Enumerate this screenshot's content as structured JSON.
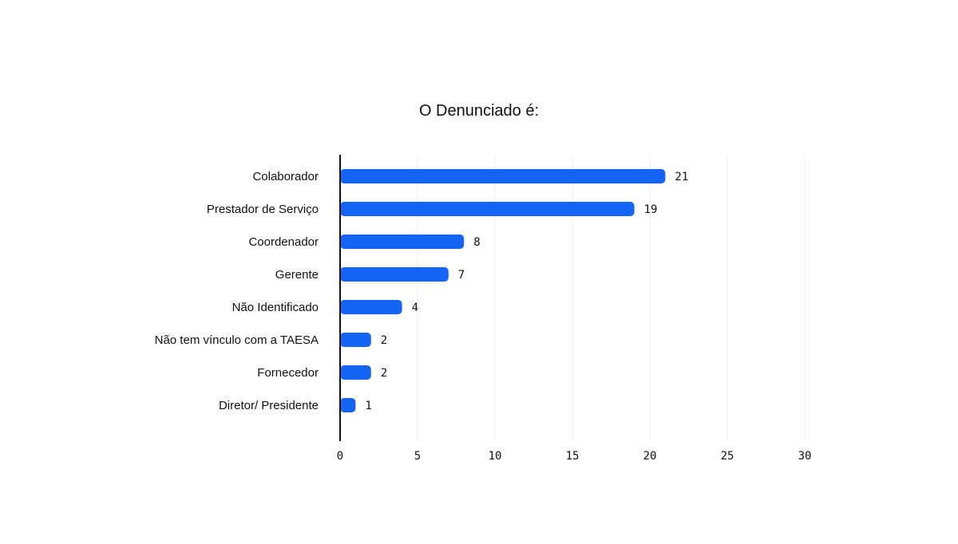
{
  "chart_data": {
    "type": "bar",
    "orientation": "horizontal",
    "title": "O Denunciado é:",
    "categories": [
      "Colaborador",
      "Prestador de Serviço",
      "Coordenador",
      "Gerente",
      "Não Identificado",
      "Não tem vínculo com a TAESA",
      "Fornecedor",
      "Diretor/ Presidente"
    ],
    "values": [
      21,
      19,
      8,
      7,
      4,
      2,
      2,
      1
    ],
    "xlim": [
      0,
      30
    ],
    "xticks": [
      "0",
      "5",
      "10",
      "15",
      "20",
      "25",
      "30"
    ],
    "grid": true,
    "color": "#1565f5"
  }
}
